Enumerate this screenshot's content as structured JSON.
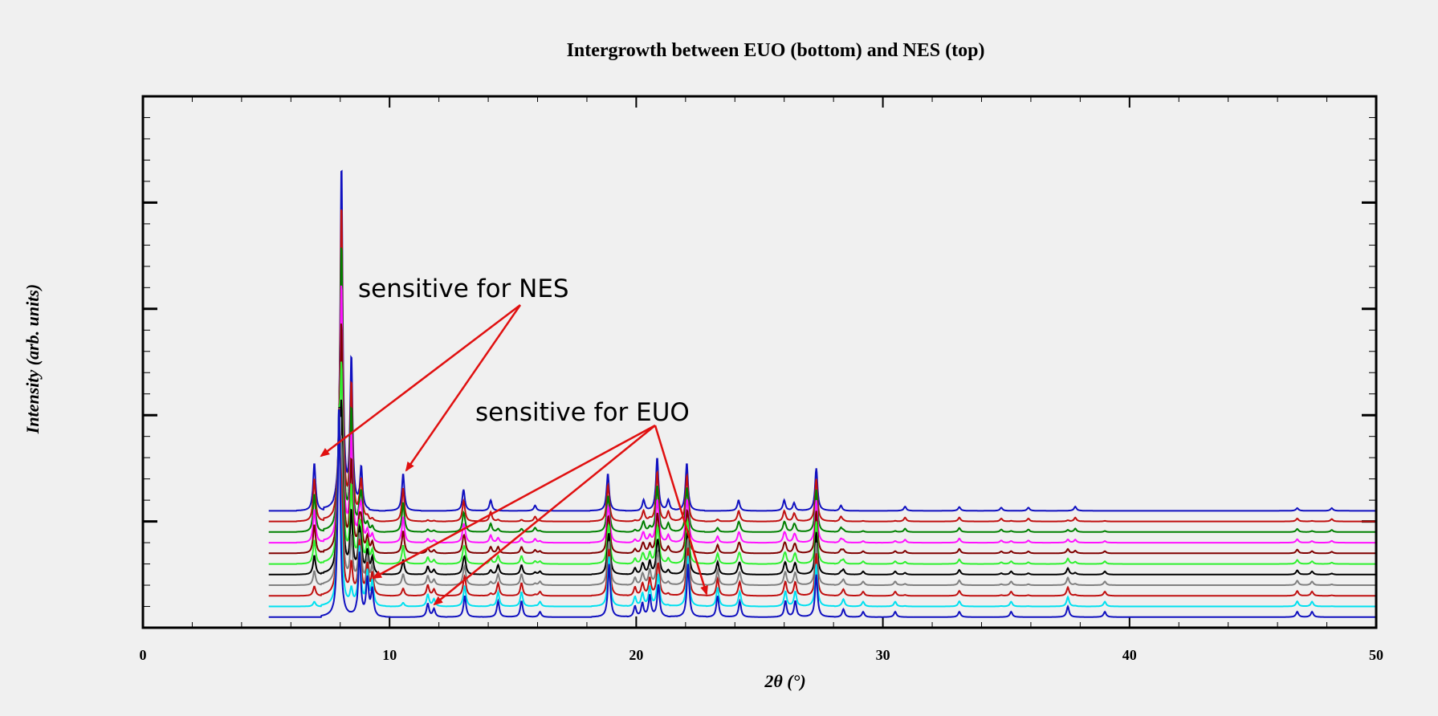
{
  "chart_data": {
    "type": "line",
    "title": "Intergrowth between EUO (bottom) and NES (top)",
    "xlabel": "2θ (°)",
    "ylabel": "Intensity (arb. units)",
    "xlim": [
      0,
      50
    ],
    "x_ticks": [
      0,
      10,
      20,
      30,
      40,
      50
    ],
    "x_tick_labels": [
      "0",
      "10",
      "20",
      "30",
      "40",
      "50"
    ],
    "x_start": 5.1,
    "ylim": [
      0,
      100
    ],
    "grid": false,
    "legend": "none",
    "series_colors": [
      "#1010c0",
      "#00e0f0",
      "#c01010",
      "#808080",
      "#000000",
      "#30f030",
      "#800000",
      "#ff10ff",
      "#008000",
      "#c01010",
      "#1010c0"
    ],
    "euo_peaks": [
      {
        "x": 7.95,
        "h": 40
      },
      {
        "x": 8.78,
        "h": 12
      },
      {
        "x": 9.1,
        "h": 7
      },
      {
        "x": 9.3,
        "h": 5
      },
      {
        "x": 11.55,
        "h": 2.5
      },
      {
        "x": 11.8,
        "h": 1.5
      },
      {
        "x": 13.05,
        "h": 4
      },
      {
        "x": 14.4,
        "h": 3
      },
      {
        "x": 15.35,
        "h": 3
      },
      {
        "x": 16.1,
        "h": 1
      },
      {
        "x": 18.9,
        "h": 10
      },
      {
        "x": 19.95,
        "h": 2
      },
      {
        "x": 20.25,
        "h": 2.5
      },
      {
        "x": 20.55,
        "h": 4
      },
      {
        "x": 20.9,
        "h": 6
      },
      {
        "x": 22.1,
        "h": 10
      },
      {
        "x": 23.3,
        "h": 4
      },
      {
        "x": 24.2,
        "h": 3
      },
      {
        "x": 26.05,
        "h": 3
      },
      {
        "x": 26.45,
        "h": 3
      },
      {
        "x": 27.3,
        "h": 8
      },
      {
        "x": 28.4,
        "h": 1.5
      },
      {
        "x": 29.2,
        "h": 1
      },
      {
        "x": 30.5,
        "h": 1
      },
      {
        "x": 33.1,
        "h": 1
      },
      {
        "x": 35.2,
        "h": 1
      },
      {
        "x": 37.5,
        "h": 2
      },
      {
        "x": 39.0,
        "h": 1
      },
      {
        "x": 46.8,
        "h": 1
      },
      {
        "x": 47.4,
        "h": 1
      }
    ],
    "nes_peaks": [
      {
        "x": 6.95,
        "h": 9
      },
      {
        "x": 8.05,
        "h": 65
      },
      {
        "x": 8.45,
        "h": 28
      },
      {
        "x": 8.85,
        "h": 8
      },
      {
        "x": 10.55,
        "h": 7
      },
      {
        "x": 13.0,
        "h": 4
      },
      {
        "x": 14.1,
        "h": 2
      },
      {
        "x": 15.9,
        "h": 1
      },
      {
        "x": 18.85,
        "h": 7
      },
      {
        "x": 20.3,
        "h": 2
      },
      {
        "x": 20.85,
        "h": 10
      },
      {
        "x": 21.3,
        "h": 2
      },
      {
        "x": 22.05,
        "h": 9
      },
      {
        "x": 24.15,
        "h": 2
      },
      {
        "x": 26.0,
        "h": 2
      },
      {
        "x": 26.4,
        "h": 1.5
      },
      {
        "x": 27.3,
        "h": 8
      },
      {
        "x": 28.3,
        "h": 1
      },
      {
        "x": 30.9,
        "h": 0.8
      },
      {
        "x": 33.1,
        "h": 0.7
      },
      {
        "x": 34.8,
        "h": 0.6
      },
      {
        "x": 35.9,
        "h": 0.6
      },
      {
        "x": 37.8,
        "h": 0.8
      },
      {
        "x": 46.8,
        "h": 0.5
      },
      {
        "x": 48.2,
        "h": 0.5
      }
    ],
    "annotations": [
      {
        "text": "sensitive for NES"
      },
      {
        "text": "sensitive for EUO"
      }
    ]
  }
}
